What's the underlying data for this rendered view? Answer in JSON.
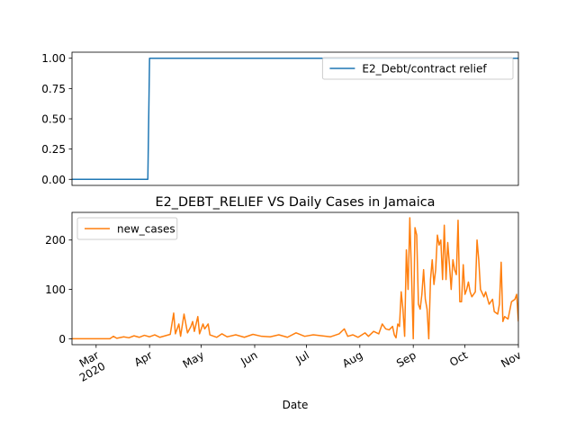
{
  "chart_data": [
    {
      "type": "line",
      "series": [
        {
          "name": "E2_Debt/contract relief",
          "color": "#1f77b4",
          "x": [
            "2020-02-16",
            "2020-03-31",
            "2020-04-01",
            "2020-11-01"
          ],
          "values": [
            0,
            0,
            1,
            1
          ]
        }
      ],
      "xlim": [
        "2020-02-16",
        "2020-11-01"
      ],
      "ylim": [
        -0.05,
        1.05
      ],
      "yticks": [
        {
          "value": 0,
          "label": "0.00"
        },
        {
          "value": 0.25,
          "label": "0.25"
        },
        {
          "value": 0.5,
          "label": "0.50"
        },
        {
          "value": 0.75,
          "label": "0.75"
        },
        {
          "value": 1,
          "label": "1.00"
        }
      ],
      "legend": "upper right"
    },
    {
      "type": "line",
      "title": "E2_DEBT_RELIEF VS Daily Cases in Jamaica",
      "xlabel": "Date",
      "series": [
        {
          "name": "new_cases",
          "color": "#ff7f0e",
          "x": [
            "2020-02-16",
            "2020-03-09",
            "2020-03-11",
            "2020-03-13",
            "2020-03-17",
            "2020-03-20",
            "2020-03-23",
            "2020-03-26",
            "2020-03-29",
            "2020-04-01",
            "2020-04-04",
            "2020-04-07",
            "2020-04-10",
            "2020-04-13",
            "2020-04-15",
            "2020-04-16",
            "2020-04-18",
            "2020-04-19",
            "2020-04-21",
            "2020-04-23",
            "2020-04-25",
            "2020-04-26",
            "2020-04-27",
            "2020-04-29",
            "2020-04-30",
            "2020-05-02",
            "2020-05-03",
            "2020-05-05",
            "2020-05-06",
            "2020-05-10",
            "2020-05-13",
            "2020-05-16",
            "2020-05-21",
            "2020-05-26",
            "2020-05-31",
            "2020-06-05",
            "2020-06-10",
            "2020-06-15",
            "2020-06-20",
            "2020-06-25",
            "2020-06-30",
            "2020-07-05",
            "2020-07-10",
            "2020-07-15",
            "2020-07-20",
            "2020-07-23",
            "2020-07-25",
            "2020-07-28",
            "2020-07-31",
            "2020-08-04",
            "2020-08-06",
            "2020-08-09",
            "2020-08-12",
            "2020-08-14",
            "2020-08-16",
            "2020-08-18",
            "2020-08-20",
            "2020-08-21",
            "2020-08-22",
            "2020-08-23",
            "2020-08-24",
            "2020-08-25",
            "2020-08-26",
            "2020-08-27",
            "2020-08-28",
            "2020-08-29",
            "2020-08-30",
            "2020-08-31",
            "2020-09-01",
            "2020-09-02",
            "2020-09-03",
            "2020-09-04",
            "2020-09-05",
            "2020-09-06",
            "2020-09-07",
            "2020-09-08",
            "2020-09-09",
            "2020-09-10",
            "2020-09-11",
            "2020-09-12",
            "2020-09-13",
            "2020-09-14",
            "2020-09-15",
            "2020-09-16",
            "2020-09-17",
            "2020-09-18",
            "2020-09-19",
            "2020-09-20",
            "2020-09-21",
            "2020-09-22",
            "2020-09-23",
            "2020-09-24",
            "2020-09-25",
            "2020-09-26",
            "2020-09-27",
            "2020-09-28",
            "2020-09-29",
            "2020-09-30",
            "2020-10-01",
            "2020-10-02",
            "2020-10-03",
            "2020-10-04",
            "2020-10-05",
            "2020-10-07",
            "2020-10-08",
            "2020-10-09",
            "2020-10-10",
            "2020-10-12",
            "2020-10-13",
            "2020-10-15",
            "2020-10-17",
            "2020-10-18",
            "2020-10-20",
            "2020-10-21",
            "2020-10-22",
            "2020-10-23",
            "2020-10-24",
            "2020-10-26",
            "2020-10-28",
            "2020-10-30",
            "2020-10-31",
            "2020-11-01"
          ],
          "values": [
            0,
            0,
            5,
            1,
            4,
            2,
            6,
            3,
            7,
            4,
            8,
            3,
            6,
            9,
            52,
            10,
            30,
            5,
            50,
            12,
            25,
            35,
            15,
            45,
            10,
            30,
            20,
            30,
            8,
            3,
            10,
            4,
            8,
            3,
            9,
            5,
            4,
            8,
            3,
            12,
            5,
            8,
            6,
            4,
            10,
            20,
            5,
            8,
            3,
            12,
            5,
            15,
            10,
            30,
            20,
            18,
            25,
            8,
            2,
            30,
            25,
            95,
            60,
            5,
            180,
            100,
            245,
            130,
            0,
            225,
            210,
            70,
            60,
            90,
            140,
            80,
            60,
            0,
            120,
            160,
            110,
            140,
            210,
            190,
            200,
            120,
            230,
            120,
            195,
            150,
            100,
            160,
            140,
            130,
            240,
            75,
            75,
            150,
            90,
            100,
            115,
            95,
            85,
            95,
            200,
            160,
            100,
            85,
            95,
            70,
            80,
            55,
            50,
            70,
            155,
            35,
            45,
            40,
            75,
            80,
            90,
            35
          ]
        }
      ],
      "xlim": [
        "2020-02-16",
        "2020-11-01"
      ],
      "xticks": [
        {
          "value": "2020-03-01",
          "label": "Mar\n2020"
        },
        {
          "value": "2020-04-01",
          "label": "Apr"
        },
        {
          "value": "2020-05-01",
          "label": "May"
        },
        {
          "value": "2020-06-01",
          "label": "Jun"
        },
        {
          "value": "2020-07-01",
          "label": "Jul"
        },
        {
          "value": "2020-08-01",
          "label": "Aug"
        },
        {
          "value": "2020-09-01",
          "label": "Sep"
        },
        {
          "value": "2020-10-01",
          "label": "Oct"
        },
        {
          "value": "2020-11-01",
          "label": "Nov"
        }
      ],
      "ylim": [
        -12,
        256
      ],
      "yticks": [
        0,
        100,
        200
      ],
      "legend": "upper left"
    }
  ]
}
